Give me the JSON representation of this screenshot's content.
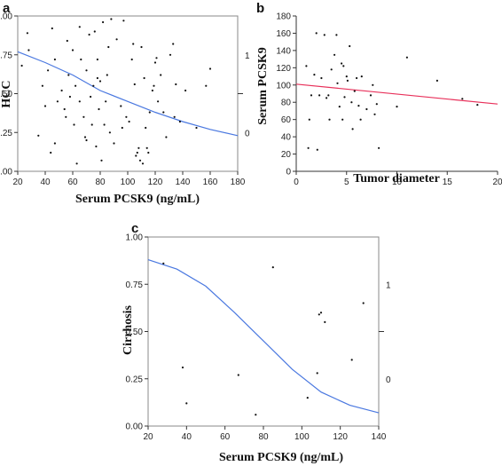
{
  "chart_data": [
    {
      "panel": "a",
      "type": "scatter",
      "xlabel": "Serum PCSK9 (ng/mL)",
      "ylabel": "HCC",
      "xlim": [
        20,
        180
      ],
      "ylim": [
        0,
        1
      ],
      "x_ticks": [
        "20",
        "40",
        "60",
        "80",
        "100",
        "120",
        "140",
        "160",
        "180"
      ],
      "y_ticks": [
        "0.00",
        "0.25",
        "0.50",
        "0.75",
        "1.00"
      ],
      "right_ticks": [
        "1",
        "0"
      ],
      "points": [
        [
          27,
          0.89
        ],
        [
          35,
          0.23
        ],
        [
          38,
          0.55
        ],
        [
          40,
          0.42
        ],
        [
          42,
          0.65
        ],
        [
          45,
          0.92
        ],
        [
          47,
          0.18
        ],
        [
          49,
          0.45
        ],
        [
          52,
          0.52
        ],
        [
          54,
          0.4
        ],
        [
          56,
          0.84
        ],
        [
          57,
          0.62
        ],
        [
          60,
          0.78
        ],
        [
          61,
          0.3
        ],
        [
          62,
          0.55
        ],
        [
          63,
          0.05
        ],
        [
          65,
          0.93
        ],
        [
          66,
          0.72
        ],
        [
          68,
          0.35
        ],
        [
          69,
          0.22
        ],
        [
          70,
          0.65
        ],
        [
          72,
          0.88
        ],
        [
          73,
          0.48
        ],
        [
          74,
          0.3
        ],
        [
          75,
          0.55
        ],
        [
          76,
          0.9
        ],
        [
          77,
          0.16
        ],
        [
          78,
          0.72
        ],
        [
          79,
          0.4
        ],
        [
          80,
          0.58
        ],
        [
          81,
          0.07
        ],
        [
          82,
          0.96
        ],
        [
          83,
          0.3
        ],
        [
          84,
          0.45
        ],
        [
          85,
          0.62
        ],
        [
          86,
          0.8
        ],
        [
          87,
          0.25
        ],
        [
          88,
          0.98
        ],
        [
          90,
          0.18
        ],
        [
          92,
          0.85
        ],
        [
          95,
          0.42
        ],
        [
          97,
          0.97
        ],
        [
          99,
          0.35
        ],
        [
          101,
          0.32
        ],
        [
          103,
          0.72
        ],
        [
          105,
          0.56
        ],
        [
          106,
          0.1
        ],
        [
          107,
          0.12
        ],
        [
          108,
          0.15
        ],
        [
          110,
          0.8
        ],
        [
          111,
          0.05
        ],
        [
          112,
          0.6
        ],
        [
          113,
          0.28
        ],
        [
          114,
          0.15
        ],
        [
          115,
          0.12
        ],
        [
          116,
          0.38
        ],
        [
          118,
          0.52
        ],
        [
          120,
          0.7
        ],
        [
          121,
          0.73
        ],
        [
          122,
          0.45
        ],
        [
          124,
          0.62
        ],
        [
          126,
          0.38
        ],
        [
          128,
          0.22
        ],
        [
          131,
          0.75
        ],
        [
          133,
          0.82
        ],
        [
          135,
          0.56
        ],
        [
          138,
          0.32
        ],
        [
          142,
          0.52
        ],
        [
          150,
          0.28
        ],
        [
          157,
          0.55
        ],
        [
          160,
          0.66
        ],
        [
          47,
          0.72
        ],
        [
          55,
          0.35
        ],
        [
          65,
          0.45
        ],
        [
          70,
          0.2
        ],
        [
          78,
          0.6
        ],
        [
          96,
          0.28
        ],
        [
          104,
          0.82
        ],
        [
          109,
          0.07
        ],
        [
          119,
          0.55
        ],
        [
          23,
          0.68
        ],
        [
          28,
          0.78
        ],
        [
          44,
          0.12
        ],
        [
          58,
          0.48
        ],
        [
          134,
          0.35
        ]
      ],
      "curve": [
        [
          20,
          0.77
        ],
        [
          40,
          0.7
        ],
        [
          60,
          0.62
        ],
        [
          80,
          0.52
        ],
        [
          100,
          0.45
        ],
        [
          120,
          0.38
        ],
        [
          140,
          0.32
        ],
        [
          160,
          0.27
        ],
        [
          180,
          0.23
        ]
      ]
    },
    {
      "panel": "b",
      "type": "scatter",
      "xlabel": "Tumor diameter",
      "ylabel": "Serum PCSK9",
      "xlim": [
        0,
        20
      ],
      "ylim": [
        0,
        180
      ],
      "x_ticks": [
        "0",
        "5",
        "10",
        "15",
        "20"
      ],
      "y_ticks": [
        "0",
        "20",
        "40",
        "60",
        "80",
        "100",
        "120",
        "140",
        "160",
        "180"
      ],
      "points": [
        [
          1,
          122
        ],
        [
          1.2,
          27
        ],
        [
          1.5,
          88
        ],
        [
          1.8,
          112
        ],
        [
          2,
          160
        ],
        [
          2.1,
          25
        ],
        [
          2.3,
          88
        ],
        [
          2.5,
          108
        ],
        [
          2.8,
          158
        ],
        [
          3,
          85
        ],
        [
          3.2,
          88
        ],
        [
          3.3,
          60
        ],
        [
          3.5,
          118
        ],
        [
          3.8,
          135
        ],
        [
          4,
          158
        ],
        [
          4.1,
          102
        ],
        [
          4.3,
          75
        ],
        [
          4.5,
          125
        ],
        [
          4.6,
          60
        ],
        [
          4.7,
          122
        ],
        [
          4.8,
          86
        ],
        [
          5,
          110
        ],
        [
          5.1,
          105
        ],
        [
          5.3,
          145
        ],
        [
          5.5,
          80
        ],
        [
          5.6,
          49
        ],
        [
          5.8,
          93
        ],
        [
          6,
          108
        ],
        [
          6.2,
          76
        ],
        [
          6.4,
          60
        ],
        [
          6.5,
          110
        ],
        [
          7,
          72
        ],
        [
          7.4,
          88
        ],
        [
          7.6,
          100
        ],
        [
          7.8,
          66
        ],
        [
          8,
          78
        ],
        [
          8.2,
          27
        ],
        [
          10,
          75
        ],
        [
          11,
          132
        ],
        [
          14,
          105
        ],
        [
          16.5,
          84
        ],
        [
          18,
          77
        ],
        [
          1.3,
          60
        ]
      ],
      "line": [
        [
          0,
          101
        ],
        [
          20,
          78
        ]
      ]
    },
    {
      "panel": "c",
      "type": "scatter",
      "xlabel": "Serum PCSK9 (ng/mL)",
      "ylabel": "Cirrhosis",
      "xlim": [
        20,
        140
      ],
      "ylim": [
        0,
        1
      ],
      "x_ticks": [
        "20",
        "40",
        "60",
        "80",
        "100",
        "120",
        "140"
      ],
      "y_ticks": [
        "0.00",
        "0.25",
        "0.50",
        "0.75",
        "1.00"
      ],
      "right_ticks": [
        "1",
        "0"
      ],
      "points": [
        [
          28,
          0.86
        ],
        [
          38,
          0.31
        ],
        [
          40,
          0.12
        ],
        [
          67,
          0.27
        ],
        [
          76,
          0.06
        ],
        [
          85,
          0.84
        ],
        [
          103,
          0.15
        ],
        [
          108,
          0.28
        ],
        [
          109,
          0.59
        ],
        [
          110,
          0.6
        ],
        [
          112,
          0.55
        ],
        [
          126,
          0.35
        ],
        [
          132,
          0.65
        ]
      ],
      "curve": [
        [
          20,
          0.88
        ],
        [
          35,
          0.83
        ],
        [
          50,
          0.74
        ],
        [
          65,
          0.6
        ],
        [
          80,
          0.45
        ],
        [
          95,
          0.3
        ],
        [
          110,
          0.18
        ],
        [
          125,
          0.11
        ],
        [
          140,
          0.07
        ]
      ]
    }
  ]
}
